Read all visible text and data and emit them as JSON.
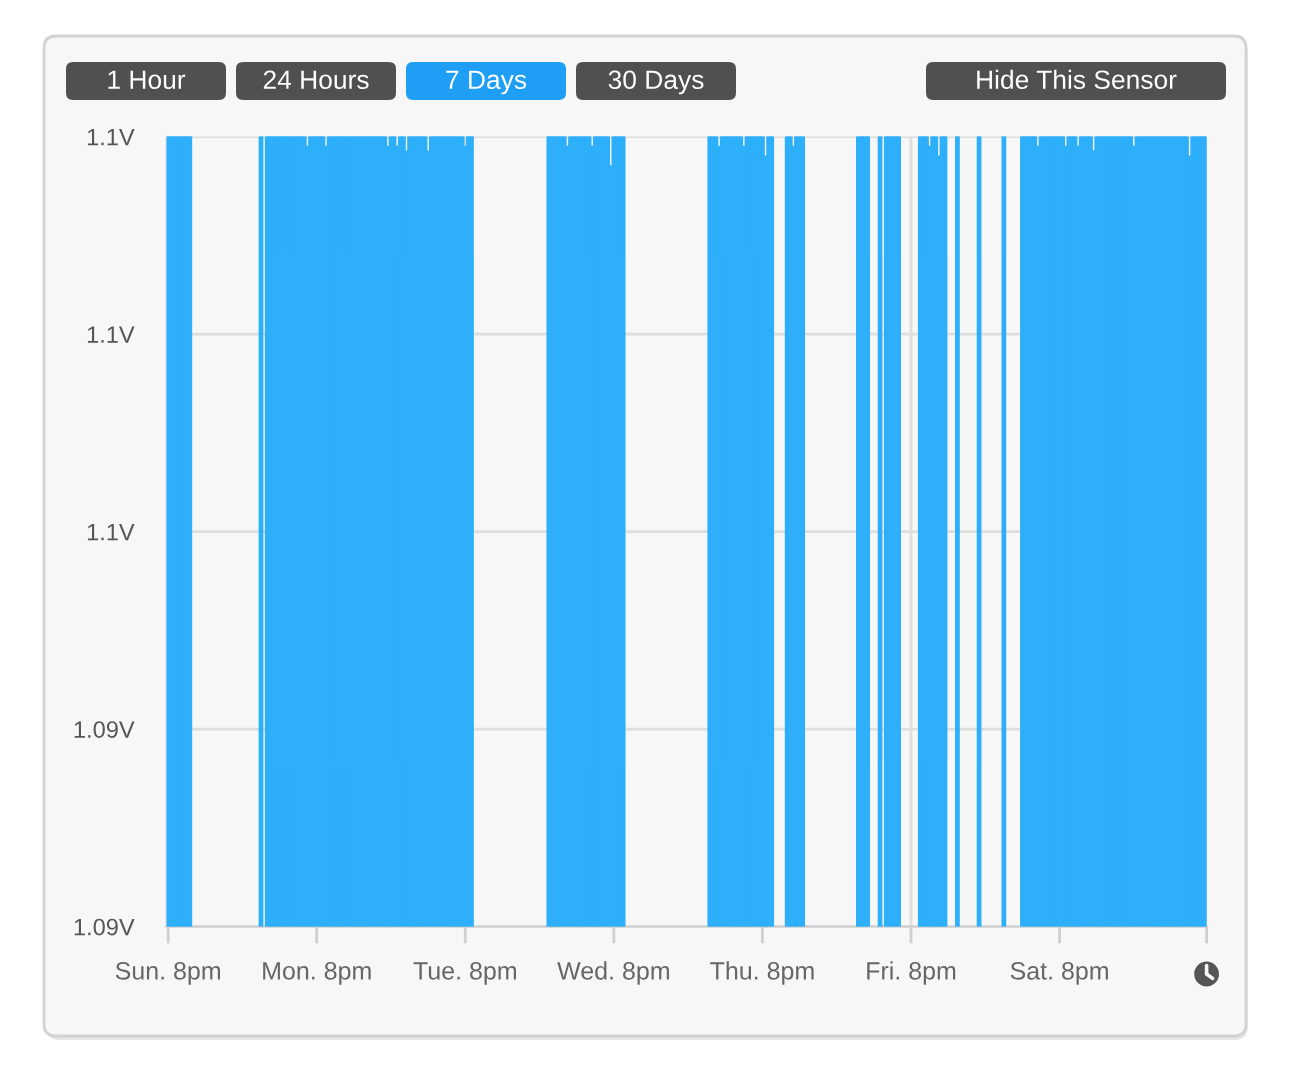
{
  "chart_data": {
    "type": "bar",
    "annotations": [
      "1 Hour",
      "24 Hours",
      "7 Days",
      "30 Days",
      "Hide This Sensor"
    ],
    "categories": [
      "Sun. 8pm",
      null,
      null,
      null,
      null,
      null,
      null,
      null,
      null,
      null,
      null,
      null,
      null,
      null,
      null,
      null,
      null,
      null,
      null,
      null,
      null,
      null,
      null,
      null,
      null,
      null,
      null,
      null,
      null,
      null,
      null,
      null,
      null,
      null,
      null,
      null,
      null,
      null,
      null,
      null,
      null,
      null,
      null,
      null,
      null,
      null,
      null,
      null,
      "Mon. 8pm",
      null,
      null,
      null,
      null,
      null,
      null,
      null,
      null,
      null,
      null,
      null,
      null,
      null,
      null,
      null,
      null,
      null,
      null,
      null,
      null,
      null,
      null,
      null,
      null,
      null,
      null,
      null,
      null,
      null,
      null,
      null,
      null,
      null,
      null,
      null,
      null,
      null,
      null,
      null,
      null,
      null,
      null,
      null,
      null,
      null,
      null,
      null,
      "Tue. 8pm",
      null,
      null,
      null,
      null,
      null,
      null,
      null,
      null,
      null,
      null,
      null,
      null,
      null,
      null,
      null,
      null,
      null,
      null,
      null,
      null,
      null,
      null,
      null,
      null,
      null,
      null,
      null,
      null,
      null,
      null,
      null,
      null,
      null,
      null,
      null,
      null,
      null,
      null,
      null,
      null,
      null,
      null,
      null,
      null,
      null,
      null,
      null,
      "Wed. 8pm",
      null,
      null,
      null,
      null,
      null,
      null,
      null,
      null,
      null,
      null,
      null,
      null,
      null,
      null,
      null,
      null,
      null,
      null,
      null,
      null,
      null,
      null,
      null,
      null,
      null,
      null,
      null,
      null,
      null,
      null,
      null,
      null,
      null,
      null,
      null,
      null,
      null,
      null,
      null,
      null,
      null,
      null,
      null,
      null,
      null,
      null,
      null,
      "Thu. 8pm",
      null,
      null,
      null,
      null,
      null,
      null,
      null,
      null,
      null,
      null,
      null,
      null,
      null,
      null,
      null,
      null,
      null,
      null,
      null,
      null,
      null,
      null,
      null,
      null,
      null,
      null,
      null,
      null,
      null,
      null,
      null,
      null,
      null,
      null,
      null,
      null,
      null,
      null,
      null,
      null,
      null,
      null,
      null,
      null,
      null,
      null,
      null,
      "Fri. 8pm",
      null,
      null,
      null,
      null,
      null,
      null,
      null,
      null,
      null,
      null,
      null,
      null,
      null,
      null,
      null,
      null,
      null,
      null,
      null,
      null,
      null,
      null,
      null,
      null,
      null,
      null,
      null,
      null,
      null,
      null,
      null,
      null,
      null,
      null,
      null,
      null,
      null,
      null,
      null,
      null,
      null,
      null,
      null,
      null,
      null,
      null,
      null,
      "Sat. 8pm",
      null,
      null,
      null,
      null,
      null,
      null,
      null,
      null,
      null,
      null,
      null,
      null,
      null,
      null,
      null,
      null,
      null,
      null,
      null,
      null,
      null,
      null,
      null,
      null,
      null,
      null,
      null,
      null,
      null,
      null,
      null,
      null,
      null,
      null,
      null,
      null,
      null,
      null,
      null,
      null,
      null,
      null,
      null,
      null,
      null,
      null,
      null
    ],
    "series": [
      {
        "color": "#2eaffa",
        "values": [
          1.104,
          1.104,
          1.104,
          1.104,
          1.104,
          1.104,
          1.104,
          1.104,
          null,
          null,
          null,
          null,
          null,
          null,
          null,
          null,
          null,
          null,
          null,
          null,
          null,
          null,
          null,
          null,
          null,
          null,
          null,
          null,
          null,
          null,
          1.104,
          null,
          1.104,
          1.104,
          1.104,
          1.104,
          1.104,
          1.104,
          1.104,
          1.104,
          1.104,
          1.104,
          1.104,
          1.104,
          1.104,
          1.1038,
          1.104,
          1.104,
          1.104,
          1.104,
          1.104,
          1.1038,
          1.104,
          1.104,
          1.104,
          1.104,
          1.104,
          1.104,
          1.104,
          1.104,
          1.104,
          1.104,
          1.104,
          1.104,
          1.104,
          1.104,
          1.104,
          1.104,
          1.104,
          1.104,
          1.104,
          1.1038,
          1.104,
          1.104,
          1.1038,
          1.104,
          1.104,
          1.1037,
          1.104,
          1.104,
          1.104,
          1.104,
          1.104,
          1.104,
          1.1037,
          1.104,
          1.104,
          1.104,
          1.104,
          1.104,
          1.104,
          1.104,
          1.104,
          1.104,
          1.104,
          1.104,
          1.1038,
          1.104,
          1.104,
          null,
          null,
          null,
          null,
          null,
          null,
          null,
          null,
          null,
          null,
          null,
          null,
          null,
          null,
          null,
          null,
          null,
          null,
          null,
          null,
          null,
          null,
          null,
          null,
          1.104,
          1.104,
          1.104,
          1.104,
          1.104,
          1.104,
          1.1038,
          1.104,
          1.104,
          1.104,
          1.104,
          1.104,
          1.104,
          1.104,
          1.1038,
          1.104,
          1.104,
          1.104,
          1.104,
          1.104,
          1.1034,
          1.104,
          1.104,
          1.104,
          1.104,
          null,
          null,
          null,
          null,
          null,
          null,
          null,
          null,
          null,
          null,
          null,
          null,
          null,
          null,
          null,
          null,
          null,
          null,
          null,
          null,
          null,
          null,
          null,
          null,
          null,
          null,
          null,
          1.104,
          1.104,
          1.104,
          1.1038,
          1.104,
          1.104,
          1.104,
          1.104,
          1.104,
          1.104,
          1.104,
          1.1038,
          1.104,
          1.104,
          1.104,
          1.104,
          1.104,
          1.104,
          1.1036,
          1.104,
          1.104,
          null,
          null,
          null,
          null,
          1.104,
          1.104,
          1.1038,
          1.104,
          1.104,
          1.104,
          null,
          null,
          null,
          null,
          null,
          null,
          null,
          null,
          null,
          null,
          null,
          null,
          null,
          null,
          null,
          null,
          null,
          1.104,
          1.104,
          1.104,
          1.104,
          null,
          null,
          null,
          1.104,
          null,
          1.104,
          1.104,
          1.104,
          1.104,
          1.104,
          null,
          null,
          null,
          null,
          null,
          null,
          1.104,
          1.104,
          1.104,
          1.1038,
          1.104,
          1.104,
          1.1036,
          1.104,
          1.104,
          null,
          null,
          null,
          1.104,
          null,
          null,
          null,
          null,
          null,
          null,
          1.104,
          null,
          null,
          null,
          null,
          null,
          null,
          null,
          1.104,
          null,
          null,
          null,
          null,
          null,
          1.104,
          1.104,
          1.104,
          1.104,
          1.104,
          1.1038,
          1.104,
          1.104,
          1.104,
          1.104,
          1.104,
          1.104,
          1.104,
          1.104,
          1.1038,
          1.104,
          1.104,
          1.104,
          1.1038,
          1.104,
          1.104,
          1.104,
          1.104,
          1.1037,
          1.104,
          1.104,
          1.104,
          1.104,
          1.104,
          1.104,
          1.104,
          1.104,
          1.104,
          1.104,
          1.104,
          1.104,
          1.1038,
          1.104,
          1.104,
          1.104,
          1.104,
          1.104,
          1.104,
          1.104,
          1.104,
          1.104,
          1.104,
          1.104,
          1.104,
          1.104,
          1.104,
          1.104,
          1.104,
          1.104,
          1.1036,
          1.104,
          1.104,
          1.104,
          1.104,
          1.104
        ]
      }
    ],
    "ylim": [
      1.088,
      1.104
    ],
    "yticks": [
      {
        "value": 1.088,
        "label": "1.09V"
      },
      {
        "value": 1.092,
        "label": "1.09V"
      },
      {
        "value": 1.096,
        "label": "1.1V"
      },
      {
        "value": 1.1,
        "label": "1.1V"
      },
      {
        "value": 1.104,
        "label": "1.1V"
      }
    ],
    "grid": true
  }
}
